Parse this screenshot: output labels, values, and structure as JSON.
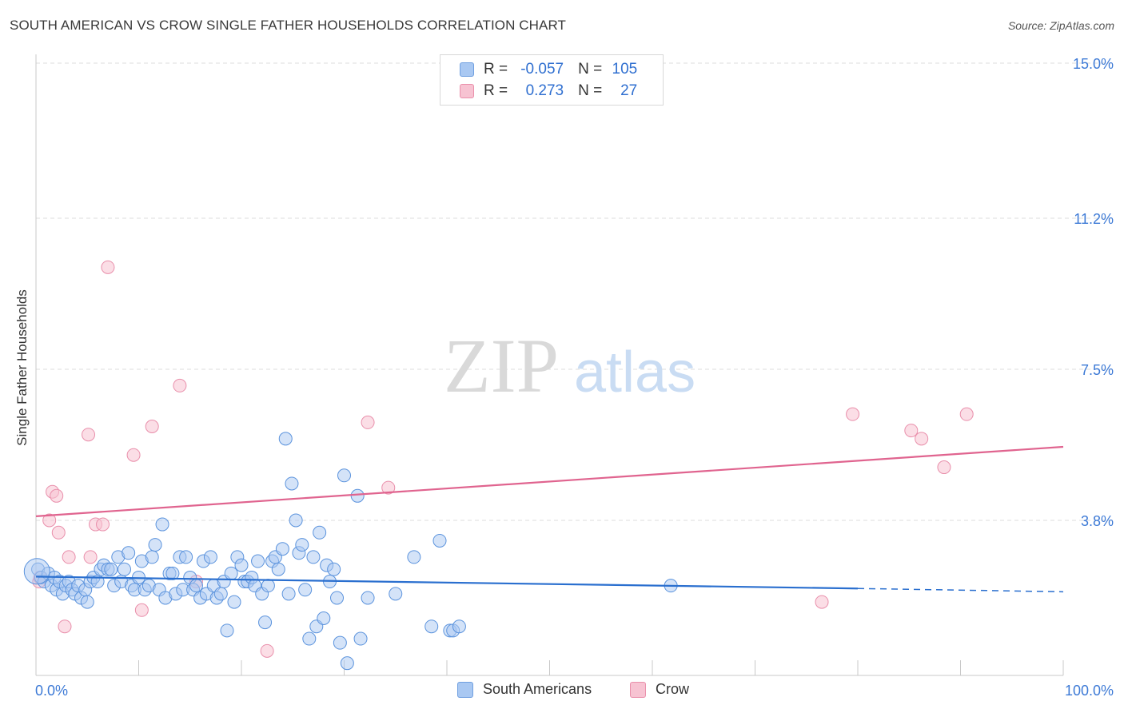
{
  "header": {
    "title": "SOUTH AMERICAN VS CROW SINGLE FATHER HOUSEHOLDS CORRELATION CHART",
    "source": "Source: ZipAtlas.com"
  },
  "watermark": {
    "zip": "ZIP",
    "atlas": "atlas"
  },
  "correlation_box": {
    "rows": [
      {
        "r_label": "R =",
        "r_value": "-0.057",
        "n_label": "N =",
        "n_value": "105",
        "color": "#a9c8f2",
        "border": "#6f9fe0"
      },
      {
        "r_label": "R =",
        "r_value": "0.273",
        "n_label": "N =",
        "n_value": "27",
        "color": "#f7c3d2",
        "border": "#ea8fab"
      }
    ]
  },
  "legend": {
    "items": [
      {
        "label": "South Americans",
        "color": "#a9c8f2",
        "border": "#6f9fe0"
      },
      {
        "label": "Crow",
        "color": "#f7c3d2",
        "border": "#ea8fab"
      }
    ]
  },
  "colors": {
    "blue_fill": "#a9c8f2",
    "blue_stroke": "#5b93dd",
    "blue_line": "#2a6fcf",
    "pink_fill": "#f7c3d2",
    "pink_stroke": "#e98fab",
    "pink_line": "#e0648f",
    "tick_label": "#3d7ad6",
    "grid": "#dcdcdc"
  },
  "chart_data": {
    "type": "scatter",
    "title": "SOUTH AMERICAN VS CROW SINGLE FATHER HOUSEHOLDS CORRELATION CHART",
    "xlabel": "",
    "ylabel": "Single Father Households",
    "xlim": [
      0,
      100
    ],
    "ylim": [
      0,
      15
    ],
    "x_tick_labels": [
      "0.0%",
      "100.0%"
    ],
    "y_ticks": [
      3.8,
      7.5,
      11.2,
      15.0
    ],
    "y_tick_labels": [
      "3.8%",
      "7.5%",
      "11.2%",
      "15.0%"
    ],
    "grid": true,
    "series": [
      {
        "name": "South Americans",
        "r": -0.057,
        "n": 105,
        "trend": {
          "x": [
            0,
            80
          ],
          "y": [
            2.42,
            2.13
          ],
          "dashed_extension_to_x": 100,
          "y_at_100": 2.05
        },
        "points": [
          [
            0.2,
            2.6
          ],
          [
            0.5,
            2.4
          ],
          [
            0.8,
            2.3
          ],
          [
            1.2,
            2.5
          ],
          [
            1.5,
            2.2
          ],
          [
            1.8,
            2.4
          ],
          [
            2.0,
            2.1
          ],
          [
            2.3,
            2.3
          ],
          [
            2.6,
            2.0
          ],
          [
            2.9,
            2.2
          ],
          [
            3.2,
            2.3
          ],
          [
            3.5,
            2.1
          ],
          [
            3.8,
            2.0
          ],
          [
            4.1,
            2.2
          ],
          [
            4.4,
            1.9
          ],
          [
            4.8,
            2.1
          ],
          [
            5.0,
            1.8
          ],
          [
            5.3,
            2.3
          ],
          [
            5.6,
            2.4
          ],
          [
            6.0,
            2.3
          ],
          [
            6.3,
            2.6
          ],
          [
            6.6,
            2.7
          ],
          [
            7.0,
            2.6
          ],
          [
            7.3,
            2.6
          ],
          [
            7.6,
            2.2
          ],
          [
            8.0,
            2.9
          ],
          [
            8.3,
            2.3
          ],
          [
            8.6,
            2.6
          ],
          [
            9.0,
            3.0
          ],
          [
            9.3,
            2.2
          ],
          [
            9.6,
            2.1
          ],
          [
            10.0,
            2.4
          ],
          [
            10.3,
            2.8
          ],
          [
            10.6,
            2.1
          ],
          [
            11.0,
            2.2
          ],
          [
            11.3,
            2.9
          ],
          [
            11.6,
            3.2
          ],
          [
            12.0,
            2.1
          ],
          [
            12.3,
            3.7
          ],
          [
            12.6,
            1.9
          ],
          [
            13.0,
            2.5
          ],
          [
            13.3,
            2.5
          ],
          [
            13.6,
            2.0
          ],
          [
            14.0,
            2.9
          ],
          [
            14.3,
            2.1
          ],
          [
            14.6,
            2.9
          ],
          [
            15.0,
            2.4
          ],
          [
            15.3,
            2.1
          ],
          [
            15.6,
            2.2
          ],
          [
            16.0,
            1.9
          ],
          [
            16.3,
            2.8
          ],
          [
            16.6,
            2.0
          ],
          [
            17.0,
            2.9
          ],
          [
            17.3,
            2.2
          ],
          [
            17.6,
            1.9
          ],
          [
            18.0,
            2.0
          ],
          [
            18.3,
            2.3
          ],
          [
            18.6,
            1.1
          ],
          [
            19.0,
            2.5
          ],
          [
            19.3,
            1.8
          ],
          [
            19.6,
            2.9
          ],
          [
            20.0,
            2.7
          ],
          [
            20.3,
            2.3
          ],
          [
            20.6,
            2.3
          ],
          [
            21.0,
            2.4
          ],
          [
            21.3,
            2.2
          ],
          [
            21.6,
            2.8
          ],
          [
            22.0,
            2.0
          ],
          [
            22.3,
            1.3
          ],
          [
            22.6,
            2.2
          ],
          [
            23.0,
            2.8
          ],
          [
            23.3,
            2.9
          ],
          [
            23.6,
            2.6
          ],
          [
            24.0,
            3.1
          ],
          [
            24.3,
            5.8
          ],
          [
            24.6,
            2.0
          ],
          [
            24.9,
            4.7
          ],
          [
            25.3,
            3.8
          ],
          [
            25.6,
            3.0
          ],
          [
            25.9,
            3.2
          ],
          [
            26.2,
            2.1
          ],
          [
            26.6,
            0.9
          ],
          [
            27.0,
            2.9
          ],
          [
            27.3,
            1.2
          ],
          [
            27.6,
            3.5
          ],
          [
            28.0,
            1.4
          ],
          [
            28.3,
            2.7
          ],
          [
            28.6,
            2.3
          ],
          [
            29.0,
            2.6
          ],
          [
            29.3,
            1.9
          ],
          [
            29.6,
            0.8
          ],
          [
            30.0,
            4.9
          ],
          [
            30.3,
            0.3
          ],
          [
            31.3,
            4.4
          ],
          [
            31.6,
            0.9
          ],
          [
            32.3,
            1.9
          ],
          [
            35.0,
            2.0
          ],
          [
            36.8,
            2.9
          ],
          [
            38.5,
            1.2
          ],
          [
            39.3,
            3.3
          ],
          [
            40.3,
            1.1
          ],
          [
            40.6,
            1.1
          ],
          [
            41.2,
            1.2
          ],
          [
            61.8,
            2.2
          ],
          [
            0.1,
            2.55
          ]
        ]
      },
      {
        "name": "Crow",
        "r": 0.273,
        "n": 27,
        "trend": {
          "x": [
            0,
            100
          ],
          "y": [
            3.9,
            5.6
          ]
        },
        "points": [
          [
            0.3,
            2.3
          ],
          [
            1.3,
            3.8
          ],
          [
            1.6,
            4.5
          ],
          [
            2.0,
            4.4
          ],
          [
            2.2,
            3.5
          ],
          [
            2.8,
            1.2
          ],
          [
            3.2,
            2.9
          ],
          [
            5.1,
            5.9
          ],
          [
            5.3,
            2.9
          ],
          [
            5.8,
            3.7
          ],
          [
            6.5,
            3.7
          ],
          [
            7.0,
            10.0
          ],
          [
            9.5,
            5.4
          ],
          [
            10.3,
            1.6
          ],
          [
            11.3,
            6.1
          ],
          [
            14.0,
            7.1
          ],
          [
            15.6,
            2.3
          ],
          [
            22.5,
            0.6
          ],
          [
            32.3,
            6.2
          ],
          [
            34.3,
            4.6
          ],
          [
            76.5,
            1.8
          ],
          [
            79.5,
            6.4
          ],
          [
            85.2,
            6.0
          ],
          [
            86.2,
            5.8
          ],
          [
            88.4,
            5.1
          ],
          [
            90.6,
            6.4
          ],
          [
            0.4,
            2.4
          ]
        ]
      }
    ]
  }
}
